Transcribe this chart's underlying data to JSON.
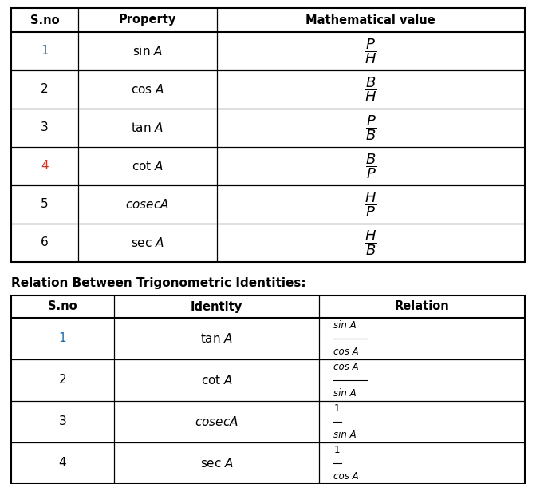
{
  "bg_color": "#ffffff",
  "figsize": [
    6.72,
    6.06
  ],
  "dpi": 100,
  "table1": {
    "headers": [
      "S.no",
      "Property",
      "Mathematical value"
    ],
    "col_ratios": [
      0.13,
      0.27,
      0.6
    ],
    "rows": [
      {
        "sno": "1",
        "property": "$\\mathrm{sin}\\ \\mathit{A}$",
        "value": "$\\dfrac{P}{H}$",
        "sno_color": "#1a6db5"
      },
      {
        "sno": "2",
        "property": "$\\mathrm{cos}\\ \\mathit{A}$",
        "value": "$\\dfrac{B}{H}$",
        "sno_color": "#000000"
      },
      {
        "sno": "3",
        "property": "$\\mathrm{tan}\\ \\mathit{A}$",
        "value": "$\\dfrac{P}{B}$",
        "sno_color": "#000000"
      },
      {
        "sno": "4",
        "property": "$\\mathrm{cot}\\ \\mathit{A}$",
        "value": "$\\dfrac{B}{P}$",
        "sno_color": "#c0392b"
      },
      {
        "sno": "5",
        "property": "$\\mathit{cosec}\\mathit{A}$",
        "value": "$\\dfrac{H}{P}$",
        "sno_color": "#000000"
      },
      {
        "sno": "6",
        "property": "$\\mathrm{sec}\\ \\mathit{A}$",
        "value": "$\\dfrac{H}{B}$",
        "sno_color": "#000000"
      }
    ]
  },
  "section2_title": "Relation Between Trigonometric Identities:",
  "table2": {
    "headers": [
      "S.no",
      "Identity",
      "Relation"
    ],
    "col_ratios": [
      0.2,
      0.4,
      0.4
    ],
    "rows": [
      {
        "sno": "1",
        "identity": "$\\mathrm{tan}\\ \\mathit{A}$",
        "num": "sin A",
        "den": "cos A",
        "sno_color": "#1a6db5"
      },
      {
        "sno": "2",
        "identity": "$\\mathrm{cot}\\ \\mathit{A}$",
        "num": "cos A",
        "den": "sin A",
        "sno_color": "#000000"
      },
      {
        "sno": "3",
        "identity": "$\\mathit{cosec}\\mathit{A}$",
        "num": "1",
        "den": "sin A",
        "sno_color": "#000000"
      },
      {
        "sno": "4",
        "identity": "$\\mathrm{sec}\\ \\mathit{A}$",
        "num": "1",
        "den": "cos A",
        "sno_color": "#000000"
      }
    ]
  }
}
